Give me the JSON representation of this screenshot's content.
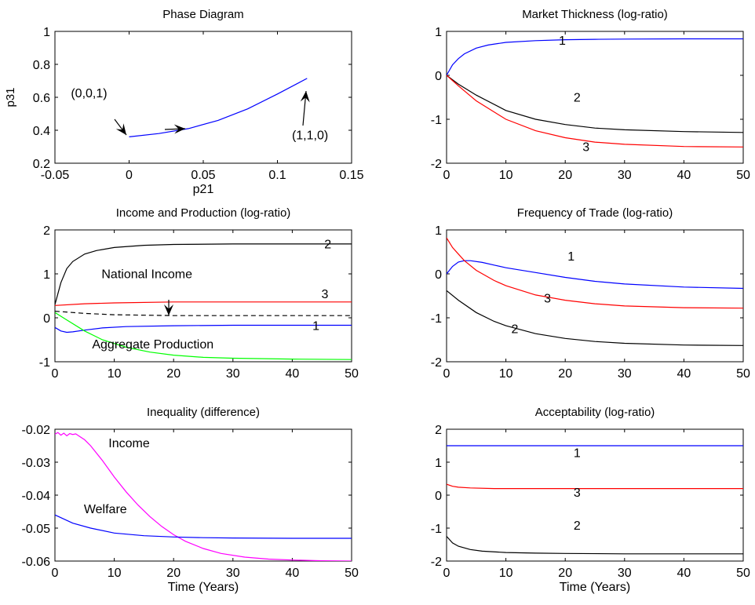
{
  "chart_data": [
    {
      "id": "phase",
      "type": "line",
      "title": "Phase Diagram",
      "xlabel": "p21",
      "ylabel": "p31",
      "xlim": [
        -0.05,
        0.15
      ],
      "ylim": [
        0.2,
        1.0
      ],
      "xticks": [
        -0.05,
        0,
        0.05,
        0.1,
        0.15
      ],
      "xtick_labels": [
        "-0.05",
        "0",
        "0.05",
        "0.1",
        "0.15"
      ],
      "yticks": [
        0.2,
        0.4,
        0.6,
        0.8,
        1.0
      ],
      "ytick_labels": [
        "0.2",
        "0.4",
        "0.6",
        "0.8",
        "1"
      ],
      "grid": false,
      "series": [
        {
          "color": "#0000ff",
          "x": [
            0,
            0.02,
            0.04,
            0.06,
            0.08,
            0.1,
            0.12
          ],
          "y": [
            0.36,
            0.38,
            0.41,
            0.46,
            0.53,
            0.62,
            0.715
          ]
        }
      ],
      "annotations": [
        {
          "text": "(0,0,1)",
          "x": -0.027,
          "y": 0.6
        },
        {
          "text": "(1,1,0)",
          "x": 0.122,
          "y": 0.345
        }
      ]
    },
    {
      "id": "thickness",
      "type": "line",
      "title": "Market Thickness (log-ratio)",
      "xlabel": "",
      "ylabel": "",
      "xlim": [
        0,
        50
      ],
      "ylim": [
        -2,
        1
      ],
      "xticks": [
        0,
        10,
        20,
        30,
        40,
        50
      ],
      "xtick_labels": [
        "0",
        "10",
        "20",
        "30",
        "40",
        "50"
      ],
      "yticks": [
        -2,
        -1,
        0,
        1
      ],
      "ytick_labels": [
        "-2",
        "-1",
        "0",
        "1"
      ],
      "grid": false,
      "series": [
        {
          "color": "#0000ff",
          "x": [
            0,
            1,
            2,
            3,
            5,
            7,
            10,
            15,
            20,
            25,
            30,
            40,
            50
          ],
          "y": [
            0,
            0.24,
            0.38,
            0.49,
            0.62,
            0.69,
            0.75,
            0.79,
            0.81,
            0.82,
            0.825,
            0.83,
            0.83
          ]
        },
        {
          "color": "#000000",
          "x": [
            0,
            2,
            5,
            10,
            15,
            20,
            25,
            30,
            40,
            50
          ],
          "y": [
            0,
            -0.2,
            -0.45,
            -0.8,
            -1.0,
            -1.12,
            -1.2,
            -1.24,
            -1.28,
            -1.3
          ]
        },
        {
          "color": "#ff0000",
          "x": [
            0,
            2,
            5,
            10,
            15,
            20,
            25,
            30,
            40,
            50
          ],
          "y": [
            0,
            -0.24,
            -0.58,
            -1.0,
            -1.26,
            -1.42,
            -1.52,
            -1.57,
            -1.62,
            -1.63
          ]
        }
      ],
      "annotations": [
        {
          "text": "1",
          "x": 19.5,
          "y": 0.7
        },
        {
          "text": "2",
          "x": 22,
          "y": -0.6
        },
        {
          "text": "3",
          "x": 23.5,
          "y": -1.72
        }
      ]
    },
    {
      "id": "income",
      "type": "line",
      "title": "Income and Production (log-ratio)",
      "xlabel": "",
      "ylabel": "",
      "xlim": [
        0,
        50
      ],
      "ylim": [
        -1,
        2
      ],
      "xticks": [
        0,
        10,
        20,
        30,
        40,
        50
      ],
      "xtick_labels": [
        "0",
        "10",
        "20",
        "30",
        "40",
        "50"
      ],
      "yticks": [
        -1,
        0,
        1,
        2
      ],
      "ytick_labels": [
        "-1",
        "0",
        "1",
        "2"
      ],
      "grid": false,
      "series": [
        {
          "color": "#000000",
          "x": [
            0,
            0.5,
            1,
            2,
            3,
            5,
            7,
            10,
            15,
            20,
            30,
            40,
            50
          ],
          "y": [
            0.3,
            0.55,
            0.8,
            1.12,
            1.28,
            1.45,
            1.53,
            1.6,
            1.65,
            1.67,
            1.68,
            1.68,
            1.68
          ]
        },
        {
          "color": "#ff0000",
          "x": [
            0,
            5,
            10,
            20,
            30,
            40,
            50
          ],
          "y": [
            0.28,
            0.32,
            0.34,
            0.36,
            0.36,
            0.36,
            0.36
          ]
        },
        {
          "color": "#000000",
          "dash": true,
          "x": [
            0,
            5,
            10,
            20,
            30,
            40,
            50
          ],
          "y": [
            0.15,
            0.1,
            0.07,
            0.05,
            0.05,
            0.05,
            0.05
          ]
        },
        {
          "color": "#0000ff",
          "x": [
            0,
            1,
            2,
            3,
            5,
            8,
            12,
            20,
            30,
            40,
            50
          ],
          "y": [
            -0.22,
            -0.3,
            -0.33,
            -0.32,
            -0.28,
            -0.23,
            -0.2,
            -0.18,
            -0.17,
            -0.17,
            -0.17
          ]
        },
        {
          "color": "#00ff00",
          "x": [
            0,
            2,
            5,
            8,
            12,
            16,
            20,
            25,
            30,
            40,
            50
          ],
          "y": [
            0.12,
            -0.05,
            -0.3,
            -0.5,
            -0.67,
            -0.78,
            -0.85,
            -0.9,
            -0.92,
            -0.94,
            -0.95
          ]
        }
      ],
      "annotations": [
        {
          "text": "2",
          "x": 46,
          "y": 1.58
        },
        {
          "text": "National Income",
          "x": 15.5,
          "y": 0.9
        },
        {
          "text": "3",
          "x": 45.5,
          "y": 0.45
        },
        {
          "text": "1",
          "x": 44,
          "y": -0.28
        },
        {
          "text": "Aggregate Production",
          "x": 16.5,
          "y": -0.7
        }
      ]
    },
    {
      "id": "frequency",
      "type": "line",
      "title": "Frequency of Trade (log-ratio)",
      "xlabel": "",
      "ylabel": "",
      "xlim": [
        0,
        50
      ],
      "ylim": [
        -2,
        1
      ],
      "xticks": [
        0,
        10,
        20,
        30,
        40,
        50
      ],
      "xtick_labels": [
        "0",
        "10",
        "20",
        "30",
        "40",
        "50"
      ],
      "yticks": [
        -2,
        -1,
        0,
        1
      ],
      "ytick_labels": [
        "-2",
        "-1",
        "0",
        "1"
      ],
      "grid": false,
      "series": [
        {
          "color": "#0000ff",
          "x": [
            0,
            1,
            2,
            3,
            4,
            6,
            8,
            10,
            15,
            20,
            25,
            30,
            40,
            50
          ],
          "y": [
            0,
            0.17,
            0.27,
            0.3,
            0.3,
            0.26,
            0.2,
            0.14,
            0.03,
            -0.08,
            -0.17,
            -0.23,
            -0.3,
            -0.33
          ]
        },
        {
          "color": "#ff0000",
          "x": [
            0,
            1,
            2,
            3,
            5,
            8,
            10,
            15,
            20,
            25,
            30,
            40,
            50
          ],
          "y": [
            0.82,
            0.6,
            0.45,
            0.3,
            0.08,
            -0.15,
            -0.27,
            -0.48,
            -0.6,
            -0.68,
            -0.73,
            -0.77,
            -0.78
          ]
        },
        {
          "color": "#000000",
          "x": [
            0,
            2,
            5,
            8,
            10,
            15,
            20,
            25,
            30,
            40,
            50
          ],
          "y": [
            -0.38,
            -0.6,
            -0.88,
            -1.08,
            -1.18,
            -1.36,
            -1.47,
            -1.54,
            -1.58,
            -1.62,
            -1.63
          ]
        }
      ],
      "annotations": [
        {
          "text": "1",
          "x": 21,
          "y": 0.3
        },
        {
          "text": "3",
          "x": 17,
          "y": -0.65
        },
        {
          "text": "2",
          "x": 11.5,
          "y": -1.35
        }
      ]
    },
    {
      "id": "inequality",
      "type": "line",
      "title": "Inequality (difference)",
      "xlabel": "Time (Years)",
      "ylabel": "",
      "xlim": [
        0,
        50
      ],
      "ylim": [
        -0.06,
        -0.02
      ],
      "xticks": [
        0,
        10,
        20,
        30,
        40,
        50
      ],
      "xtick_labels": [
        "0",
        "10",
        "20",
        "30",
        "40",
        "50"
      ],
      "yticks": [
        -0.06,
        -0.05,
        -0.04,
        -0.03,
        -0.02
      ],
      "ytick_labels": [
        "-0.06",
        "-0.05",
        "-0.04",
        "-0.03",
        "-0.02"
      ],
      "grid": false,
      "series": [
        {
          "color": "#ff00ff",
          "x": [
            0,
            0.5,
            1,
            1.5,
            2,
            2.5,
            3,
            3.5,
            4,
            5,
            6,
            8,
            10,
            12,
            14,
            16,
            18,
            20,
            22,
            25,
            28,
            32,
            36,
            40,
            45,
            50
          ],
          "y": [
            -0.0215,
            -0.021,
            -0.0218,
            -0.0212,
            -0.022,
            -0.0213,
            -0.0216,
            -0.0214,
            -0.022,
            -0.0232,
            -0.025,
            -0.0295,
            -0.0345,
            -0.039,
            -0.043,
            -0.0465,
            -0.0495,
            -0.052,
            -0.054,
            -0.0562,
            -0.0577,
            -0.0588,
            -0.0594,
            -0.0597,
            -0.0599,
            -0.06
          ]
        },
        {
          "color": "#0000ff",
          "x": [
            0,
            3,
            6,
            10,
            15,
            20,
            25,
            30,
            40,
            50
          ],
          "y": [
            -0.046,
            -0.0485,
            -0.05,
            -0.0515,
            -0.0523,
            -0.0527,
            -0.0529,
            -0.053,
            -0.0531,
            -0.0531
          ]
        }
      ],
      "annotations": [
        {
          "text": "Income",
          "x": 12.5,
          "y": -0.0255
        },
        {
          "text": "Welfare",
          "x": 8.5,
          "y": -0.0455
        }
      ]
    },
    {
      "id": "acceptability",
      "type": "line",
      "title": "Acceptability (log-ratio)",
      "xlabel": "Time (Years)",
      "ylabel": "",
      "xlim": [
        0,
        50
      ],
      "ylim": [
        -2,
        2
      ],
      "xticks": [
        0,
        10,
        20,
        30,
        40,
        50
      ],
      "xtick_labels": [
        "0",
        "10",
        "20",
        "30",
        "40",
        "50"
      ],
      "yticks": [
        -2,
        -1,
        0,
        1,
        2
      ],
      "ytick_labels": [
        "-2",
        "-1",
        "0",
        "1",
        "2"
      ],
      "grid": false,
      "series": [
        {
          "color": "#0000ff",
          "x": [
            0,
            10,
            20,
            30,
            40,
            50
          ],
          "y": [
            1.5,
            1.5,
            1.5,
            1.5,
            1.5,
            1.5
          ]
        },
        {
          "color": "#ff0000",
          "x": [
            0,
            1,
            2,
            4,
            8,
            15,
            25,
            50
          ],
          "y": [
            0.33,
            0.27,
            0.24,
            0.22,
            0.2,
            0.2,
            0.2,
            0.2
          ]
        },
        {
          "color": "#000000",
          "x": [
            0,
            1,
            2,
            4,
            6,
            10,
            15,
            20,
            30,
            40,
            50
          ],
          "y": [
            -1.25,
            -1.45,
            -1.55,
            -1.65,
            -1.7,
            -1.74,
            -1.76,
            -1.77,
            -1.78,
            -1.78,
            -1.78
          ]
        }
      ],
      "annotations": [
        {
          "text": "1",
          "x": 22,
          "y": 1.15
        },
        {
          "text": "3",
          "x": 22,
          "y": -0.05
        },
        {
          "text": "2",
          "x": 22,
          "y": -1.05
        }
      ]
    }
  ]
}
